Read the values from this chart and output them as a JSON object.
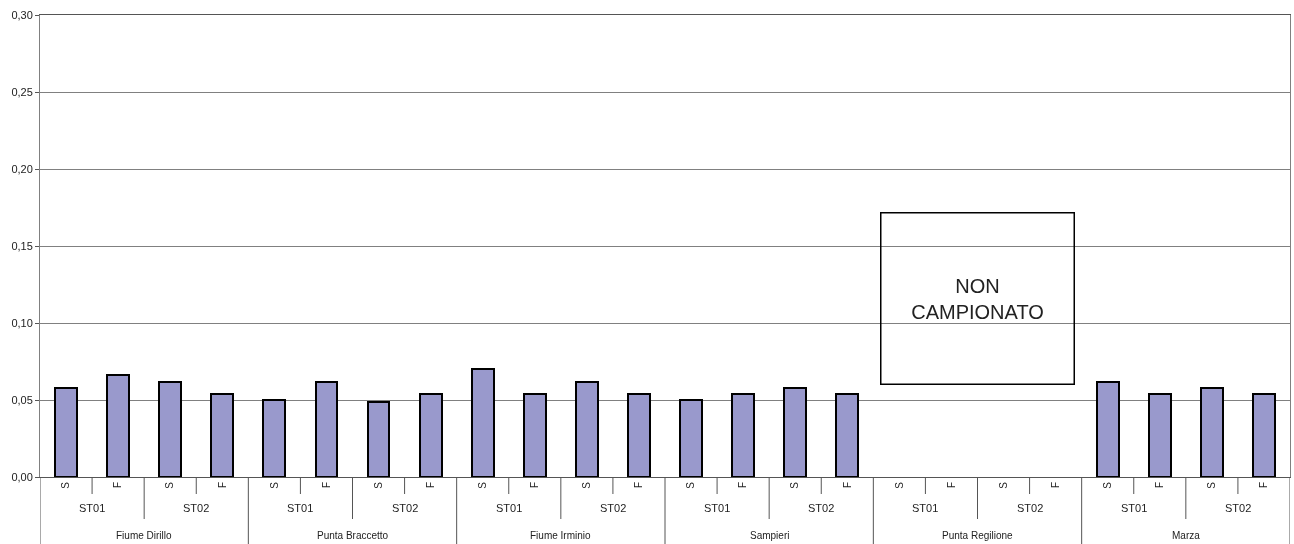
{
  "chart_data": {
    "type": "bar",
    "categories": [
      "S",
      "F",
      "S",
      "F",
      "S",
      "F",
      "S",
      "F",
      "S",
      "F",
      "S",
      "F",
      "S",
      "F",
      "S",
      "F",
      "S",
      "F",
      "S",
      "F",
      "S",
      "F",
      "S",
      "F"
    ],
    "values": [
      0.058,
      0.066,
      0.062,
      0.054,
      0.05,
      0.062,
      0.049,
      0.054,
      0.07,
      0.054,
      0.062,
      0.054,
      0.05,
      0.054,
      0.058,
      0.054,
      null,
      null,
      null,
      null,
      0.062,
      0.054,
      0.058,
      0.054
    ],
    "color": "#9999cc",
    "ylim": [
      0,
      0.3
    ],
    "yticks": [
      {
        "value": 0,
        "label": "0,00"
      },
      {
        "value": 0.05,
        "label": "0,05"
      },
      {
        "value": 0.1,
        "label": "0,10"
      },
      {
        "value": 0.15,
        "label": "0,15"
      },
      {
        "value": 0.2,
        "label": "0,20"
      },
      {
        "value": 0.25,
        "label": "0,25"
      },
      {
        "value": 0.3,
        "label": "0,30"
      }
    ],
    "grid": "y",
    "legend": false,
    "annotations": [
      "ST01",
      "ST02",
      "ST01",
      "ST02",
      "ST01",
      "ST02",
      "ST01",
      "ST02",
      "ST01",
      "ST02",
      "ST01",
      "ST02",
      "Fiume Dirillo",
      "Punta Braccetto",
      "Fiume Irminio",
      "Sampieri",
      "Punta Regilione",
      "Marza",
      "NON\nCAMPIONATO"
    ]
  }
}
